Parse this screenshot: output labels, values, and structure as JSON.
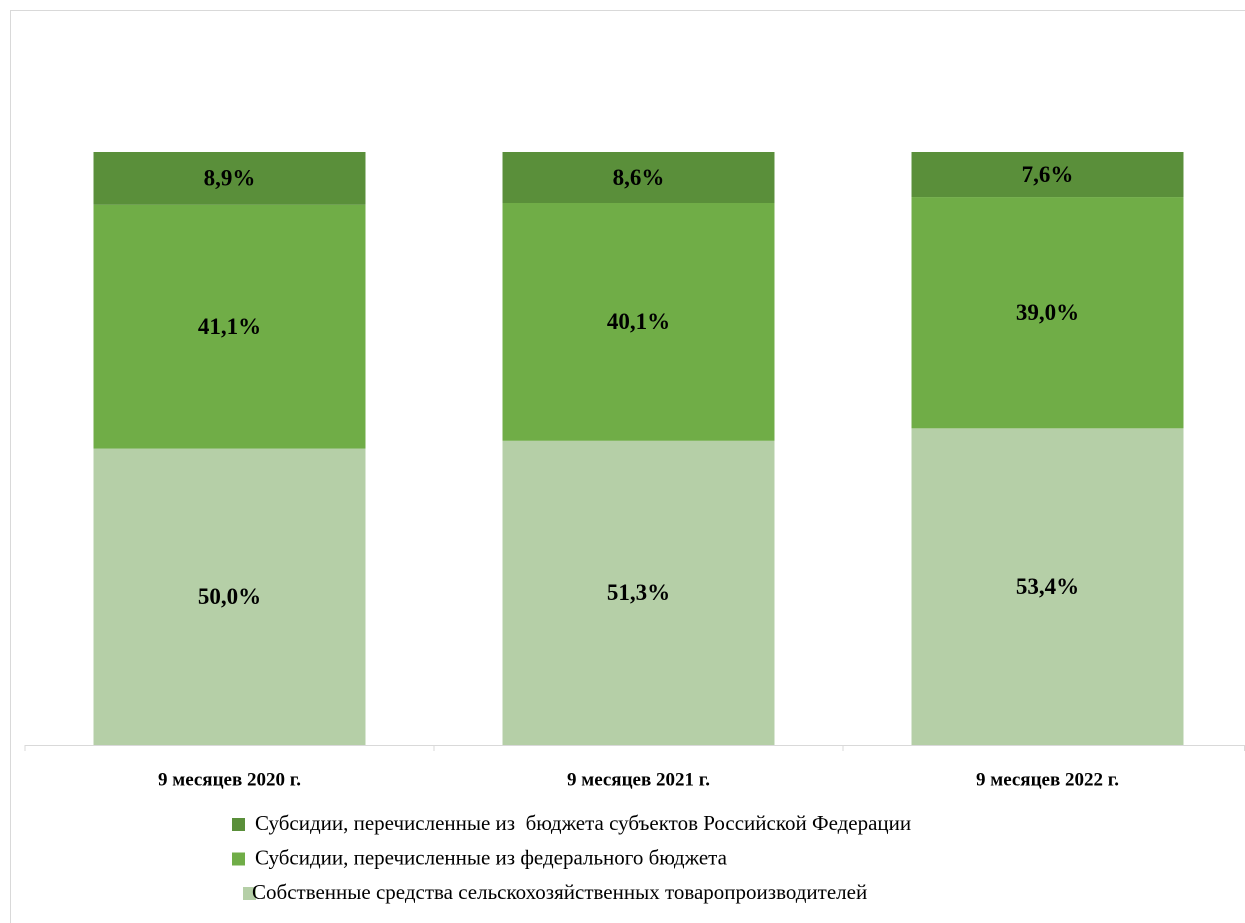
{
  "chart_data": {
    "type": "stacked_bar",
    "categories": [
      "9 месяцев 2020 г.",
      "9 месяцев 2021 г.",
      "9 месяцев 2022 г."
    ],
    "series": [
      {
        "name": "Собственные средства сельскохозяйственных товаропроизводителей",
        "color": "#b5cfa7",
        "values": [
          50.0,
          51.3,
          53.4
        ],
        "value_labels": [
          "50,0%",
          "51,3%",
          "53,4%"
        ]
      },
      {
        "name": "Субсидии, перечисленные из федерального бюджета",
        "color": "#70ad47",
        "values": [
          41.1,
          40.1,
          39.0
        ],
        "value_labels": [
          "41,1%",
          "40,1%",
          "39,0%"
        ]
      },
      {
        "name": "Субсидии, перечисленные из  бюджета субъектов Российской Федерации",
        "color": "#5a8f3a",
        "values": [
          8.9,
          8.6,
          7.6
        ],
        "value_labels": [
          "8,9%",
          "8,6%",
          "7,6%"
        ]
      }
    ],
    "ylim": [
      0,
      100
    ]
  }
}
